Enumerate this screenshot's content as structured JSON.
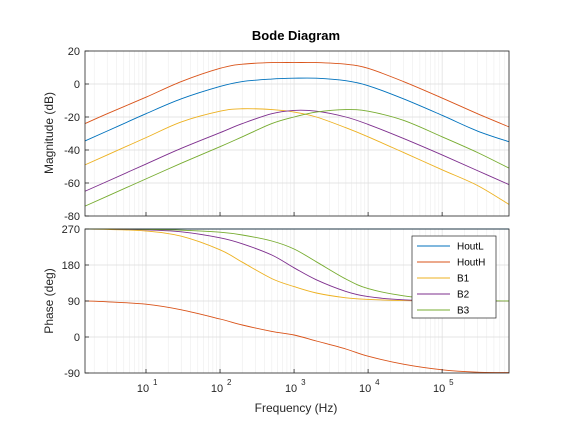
{
  "chart_data": {
    "type": "line",
    "title": "Bode Diagram",
    "xlabel": "Frequency  (Hz)",
    "x_scale": "log",
    "x_ticks": [
      10,
      100,
      1000,
      10000,
      100000
    ],
    "x_tick_labels": [
      {
        "base": "10",
        "exp": "1"
      },
      {
        "base": "10",
        "exp": "2"
      },
      {
        "base": "10",
        "exp": "3"
      },
      {
        "base": "10",
        "exp": "4"
      },
      {
        "base": "10",
        "exp": "5"
      }
    ],
    "xlim": [
      1.5,
      800000
    ],
    "grid": true,
    "legend_placement": "right",
    "series_names": [
      "HoutL",
      "HoutH",
      "B1",
      "B2",
      "B3"
    ],
    "colors": [
      "#0072BD",
      "#D95319",
      "#EDB120",
      "#7E2F8E",
      "#77AC30"
    ],
    "frequencies": [
      1.5,
      3,
      10,
      30,
      100,
      200,
      500,
      1000,
      2000,
      5000,
      10000,
      30000,
      100000,
      300000,
      800000
    ],
    "magnitude": {
      "ylabel": "Magnitude (dB)",
      "ylim": [
        -80,
        20
      ],
      "yticks": [
        20,
        0,
        -20,
        -40,
        -60,
        -80
      ],
      "ytick_labels": [
        "20",
        "0",
        "-20",
        "-40",
        "-60",
        "-80"
      ],
      "series": [
        {
          "values": [
            -34.5,
            -28.5,
            -18,
            -9,
            -1.5,
            1.5,
            3,
            3.5,
            3.5,
            2,
            -1,
            -9,
            -19,
            -28.5,
            -35
          ]
        },
        {
          "values": [
            -24,
            -18,
            -8,
            1.5,
            9.5,
            12,
            13,
            13,
            13,
            12,
            9.5,
            1.5,
            -8.5,
            -18,
            -26
          ]
        },
        {
          "values": [
            -49,
            -43,
            -32.5,
            -23,
            -16.5,
            -15,
            -15.5,
            -17,
            -20,
            -26.5,
            -32,
            -41.5,
            -52,
            -61.5,
            -73
          ]
        },
        {
          "values": [
            -65,
            -59,
            -48.5,
            -39,
            -29.5,
            -24,
            -18,
            -16,
            -16.5,
            -20,
            -24.5,
            -33,
            -43,
            -52.5,
            -61
          ]
        },
        {
          "values": [
            -74,
            -68,
            -57.5,
            -48,
            -38,
            -32,
            -24,
            -20,
            -17,
            -15.5,
            -16.5,
            -22,
            -32,
            -41.5,
            -51
          ]
        }
      ]
    },
    "phase": {
      "ylabel": "Phase (deg)",
      "ylim": [
        -90,
        270
      ],
      "yticks": [
        270,
        180,
        90,
        0,
        -90
      ],
      "ytick_labels": [
        "270",
        "180",
        "90",
        "0",
        "-90"
      ],
      "series": [
        {
          "values": [
            270,
            270,
            270,
            270,
            270,
            270,
            270,
            270,
            270,
            270,
            270,
            270,
            270,
            270,
            270
          ]
        },
        {
          "values": [
            90,
            88,
            82,
            68,
            45,
            30,
            14,
            5,
            -10,
            -30,
            -48,
            -68,
            -82,
            -88,
            -89
          ]
        },
        {
          "values": [
            270,
            269,
            265,
            252,
            218,
            187,
            146,
            126,
            110,
            98,
            94,
            91,
            90,
            90,
            90
          ]
        },
        {
          "values": [
            270,
            270,
            268,
            263,
            248,
            233,
            205,
            173,
            143,
            114,
            101,
            93,
            91,
            90,
            90
          ]
        },
        {
          "values": [
            270,
            270,
            269,
            267,
            262,
            255,
            240,
            220,
            188,
            145,
            121,
            103,
            94,
            91,
            90
          ]
        }
      ]
    }
  }
}
